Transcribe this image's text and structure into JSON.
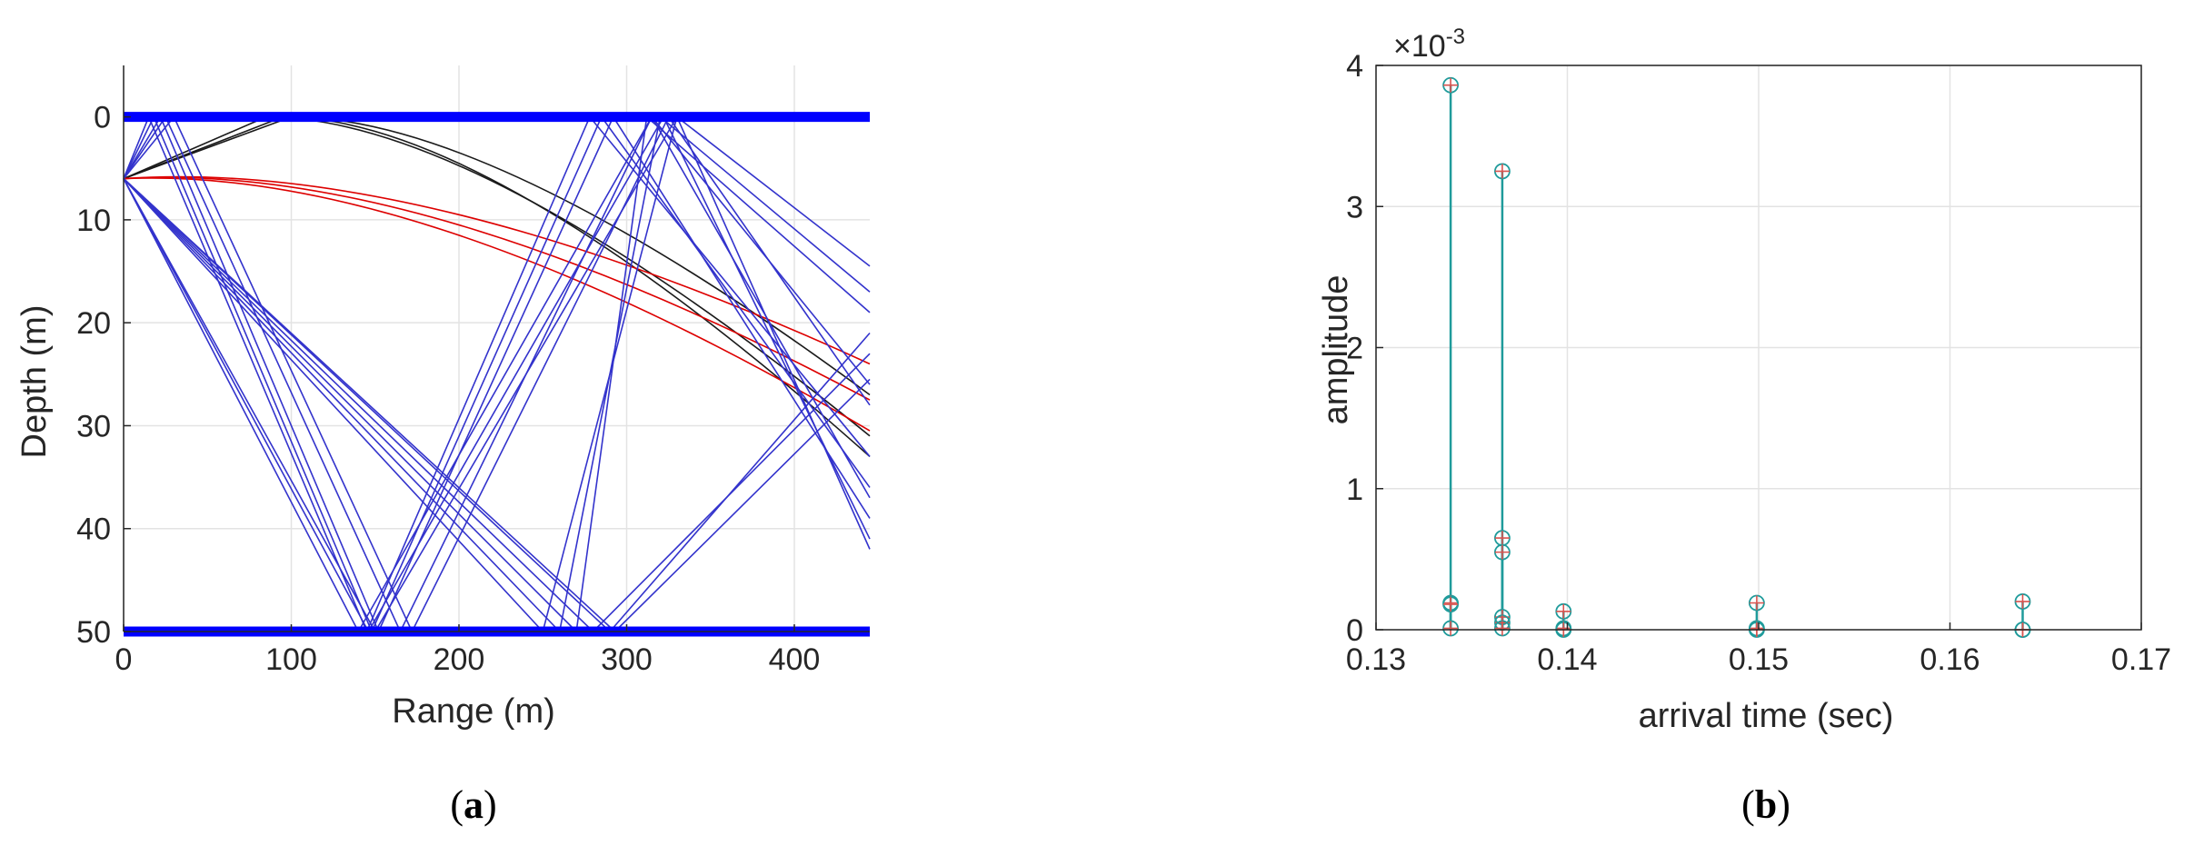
{
  "figure": {
    "captions": [
      {
        "open": "(",
        "letter": "a",
        "close": ")"
      },
      {
        "open": "(",
        "letter": "b",
        "close": ")"
      }
    ]
  },
  "chart_data": [
    {
      "type": "line",
      "panel": "a",
      "xlabel": "Range (m)",
      "ylabel": "Depth (m)",
      "xlim": [
        0,
        445
      ],
      "ylim": [
        -5,
        50
      ],
      "y_reversed": true,
      "x_ticks": [
        0,
        100,
        200,
        300,
        400
      ],
      "y_ticks": [
        0,
        10,
        20,
        30,
        40,
        50
      ],
      "grid": true,
      "colors": {
        "boundary": "#0000ff",
        "blue_rays": "#3333cc",
        "black_rays": "#1a1a1a",
        "red_rays": "#dd0000"
      },
      "source": {
        "range": 0,
        "depth": 6
      },
      "boundaries": [
        {
          "name": "surface",
          "depth": 0
        },
        {
          "name": "bottom",
          "depth": 50
        }
      ],
      "series": [
        {
          "color": "black",
          "rays": [
            {
              "points": [
                [
                  0,
                  6
                ],
                [
                  100,
                  0
                ],
                [
                  445,
                  27
                ]
              ]
            },
            {
              "points": [
                [
                  0,
                  6
                ],
                [
                  85,
                  0
                ],
                [
                  445,
                  31
                ]
              ]
            },
            {
              "points": [
                [
                  0,
                  6
                ],
                [
                  95,
                  0
                ],
                [
                  445,
                  33
                ]
              ]
            }
          ]
        },
        {
          "color": "red",
          "rays": [
            {
              "points": [
                [
                  0,
                  6
                ],
                [
                  200,
                  9.5
                ],
                [
                  445,
                  24
                ]
              ]
            },
            {
              "points": [
                [
                  0,
                  6
                ],
                [
                  200,
                  10.5
                ],
                [
                  445,
                  27.5
                ]
              ]
            },
            {
              "points": [
                [
                  0,
                  6
                ],
                [
                  200,
                  11.5
                ],
                [
                  445,
                  30.5
                ]
              ]
            }
          ]
        },
        {
          "color": "blue",
          "rays": [
            {
              "points": [
                [
                  0,
                  6
                ],
                [
                  15,
                  0
                ],
                [
                  145,
                  50
                ],
                [
                  278,
                  0
                ],
                [
                  445,
                  33
                ]
              ]
            },
            {
              "points": [
                [
                  0,
                  6
                ],
                [
                  18,
                  0
                ],
                [
                  148,
                  50
                ],
                [
                  285,
                  0
                ],
                [
                  445,
                  36
                ]
              ]
            },
            {
              "points": [
                [
                  0,
                  6
                ],
                [
                  22,
                  0
                ],
                [
                  152,
                  50
                ],
                [
                  292,
                  0
                ],
                [
                  445,
                  39
                ]
              ]
            },
            {
              "points": [
                [
                  0,
                  6
                ],
                [
                  25,
                  0
                ],
                [
                  165,
                  50
                ],
                [
                  315,
                  0
                ],
                [
                  445,
                  26
                ]
              ]
            },
            {
              "points": [
                [
                  0,
                  6
                ],
                [
                  30,
                  0
                ],
                [
                  172,
                  50
                ],
                [
                  325,
                  0
                ],
                [
                  445,
                  28
                ]
              ]
            },
            {
              "points": [
                [
                  0,
                  6
                ],
                [
                  140,
                  50
                ],
                [
                  315,
                  0
                ],
                [
                  445,
                  37
                ]
              ]
            },
            {
              "points": [
                [
                  0,
                  6
                ],
                [
                  146,
                  50
                ],
                [
                  322,
                  0
                ],
                [
                  445,
                  41
                ]
              ]
            },
            {
              "points": [
                [
                  0,
                  6
                ],
                [
                  150,
                  50
                ],
                [
                  330,
                  0
                ],
                [
                  445,
                  42
                ]
              ]
            },
            {
              "points": [
                [
                  0,
                  6
                ],
                [
                  250,
                  50
                ],
                [
                  330,
                  0
                ],
                [
                  445,
                  14.5
                ]
              ]
            },
            {
              "points": [
                [
                  0,
                  6
                ],
                [
                  260,
                  50
                ],
                [
                  320,
                  0
                ],
                [
                  445,
                  17
                ]
              ]
            },
            {
              "points": [
                [
                  0,
                  6
                ],
                [
                  270,
                  50
                ],
                [
                  312,
                  0
                ],
                [
                  445,
                  19
                ]
              ]
            },
            {
              "points": [
                [
                  0,
                  6
                ],
                [
                  280,
                  50
                ],
                [
                  445,
                  23
                ]
              ]
            },
            {
              "points": [
                [
                  0,
                  6
                ],
                [
                  290,
                  50
                ],
                [
                  445,
                  21
                ]
              ]
            },
            {
              "points": [
                [
                  0,
                  6
                ],
                [
                  293,
                  50
                ],
                [
                  445,
                  25.5
                ]
              ]
            }
          ]
        }
      ]
    },
    {
      "type": "stem",
      "panel": "b",
      "xlabel": "arrival time (sec)",
      "ylabel": "amplitude",
      "xlim": [
        0.13,
        0.17
      ],
      "ylim": [
        0,
        0.004
      ],
      "x_ticks": [
        "0.13",
        "0.14",
        "0.15",
        "0.16",
        "0.17"
      ],
      "y_ticks": [
        "0",
        "1",
        "2",
        "3",
        "4"
      ],
      "y_exponent": {
        "base": "×10",
        "power": "-3"
      },
      "grid": true,
      "colors": {
        "stem": "#1f9b9b",
        "marker": "#d9534f"
      },
      "points": [
        {
          "x": 0.1339,
          "y": 0.00386
        },
        {
          "x": 0.1339,
          "y": 0.00019
        },
        {
          "x": 0.1339,
          "y": 0.00018
        },
        {
          "x": 0.1339,
          "y": 1e-05
        },
        {
          "x": 0.1366,
          "y": 0.00325
        },
        {
          "x": 0.1366,
          "y": 0.00065
        },
        {
          "x": 0.1366,
          "y": 0.00055
        },
        {
          "x": 0.1366,
          "y": 9e-05
        },
        {
          "x": 0.1366,
          "y": 5e-05
        },
        {
          "x": 0.1366,
          "y": 1e-05
        },
        {
          "x": 0.1398,
          "y": 0.00013
        },
        {
          "x": 0.1398,
          "y": 1e-05
        },
        {
          "x": 0.1398,
          "y": 0.0
        },
        {
          "x": 0.1499,
          "y": 0.00019
        },
        {
          "x": 0.1499,
          "y": 1e-05
        },
        {
          "x": 0.1499,
          "y": 0.0
        },
        {
          "x": 0.1638,
          "y": 0.0002
        },
        {
          "x": 0.1638,
          "y": 0.0
        },
        {
          "x": 0.1638,
          "y": 0.0
        }
      ]
    }
  ]
}
